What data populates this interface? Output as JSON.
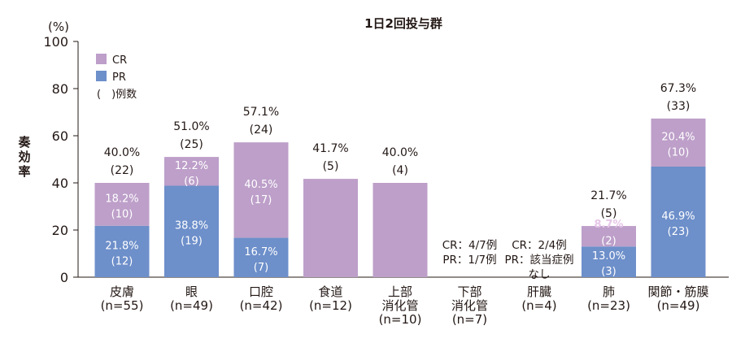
{
  "chart_data": {
    "type": "bar",
    "stacked": true,
    "title": "1日2回投与群",
    "ylabel": "奏効率",
    "yunit": "(%)",
    "ylim": [
      0,
      100
    ],
    "yticks": [
      "0",
      "20",
      "40",
      "60",
      "80",
      "100"
    ],
    "legend": {
      "placement": "top-left",
      "entries": [
        {
          "label": "CR",
          "color": "#bd9fc9"
        },
        {
          "label": "PR",
          "color": "#6d8fca"
        }
      ],
      "note": "(　)例数"
    },
    "categories": [
      {
        "line1": "皮膚",
        "line2": "(n=55)",
        "line3": ""
      },
      {
        "line1": "眼",
        "line2": "(n=49)",
        "line3": ""
      },
      {
        "line1": "口腔",
        "line2": "(n=42)",
        "line3": ""
      },
      {
        "line1": "食道",
        "line2": "(n=12)",
        "line3": ""
      },
      {
        "line1": "上部",
        "line2": "消化管",
        "line3": "(n=10)"
      },
      {
        "line1": "下部",
        "line2": "消化管",
        "line3": "(n=7)"
      },
      {
        "line1": "肝臓",
        "line2": "(n=4)",
        "line3": ""
      },
      {
        "line1": "肺",
        "line2": "(n=23)",
        "line3": ""
      },
      {
        "line1": "関節・筋膜",
        "line2": "(n=49)",
        "line3": ""
      }
    ],
    "series": [
      {
        "name": "PR",
        "color": "#6d8fca",
        "values": [
          21.8,
          38.8,
          16.7,
          0,
          0,
          0,
          0,
          13.0,
          46.9
        ],
        "labels": [
          {
            "pct": "21.8%",
            "n": "(12)"
          },
          {
            "pct": "38.8%",
            "n": "(19)"
          },
          {
            "pct": "16.7%",
            "n": "(7)"
          },
          null,
          null,
          null,
          null,
          {
            "pct": "13.0%",
            "n": "(3)"
          },
          {
            "pct": "46.9%",
            "n": "(23)"
          }
        ]
      },
      {
        "name": "CR",
        "color": "#bd9fc9",
        "values": [
          18.2,
          12.2,
          40.5,
          41.7,
          40.0,
          0,
          0,
          8.7,
          20.4
        ],
        "labels": [
          {
            "pct": "18.2%",
            "n": "(10)"
          },
          {
            "pct": "12.2%",
            "n": "(6)"
          },
          {
            "pct": "40.5%",
            "n": "(17)"
          },
          null,
          null,
          null,
          null,
          {
            "pct": "8.7%",
            "n": "(2)"
          },
          {
            "pct": "20.4%",
            "n": "(10)"
          }
        ]
      }
    ],
    "totals": [
      {
        "pct": "40.0%",
        "n": "(22)"
      },
      {
        "pct": "51.0%",
        "n": "(25)"
      },
      {
        "pct": "57.1%",
        "n": "(24)"
      },
      {
        "pct": "41.7%",
        "n": "(5)"
      },
      {
        "pct": "40.0%",
        "n": "(4)"
      },
      null,
      null,
      {
        "pct": "21.7%",
        "n": "(5)"
      },
      {
        "pct": "67.3%",
        "n": "(33)"
      }
    ],
    "notes": [
      null,
      null,
      null,
      null,
      null,
      {
        "line1": "CR：4/7例",
        "line2": "PR：1/7例",
        "line3": ""
      },
      {
        "line1": "CR：2/4例",
        "line2": "PR：該当症例",
        "line3": "なし"
      },
      null,
      null
    ]
  }
}
